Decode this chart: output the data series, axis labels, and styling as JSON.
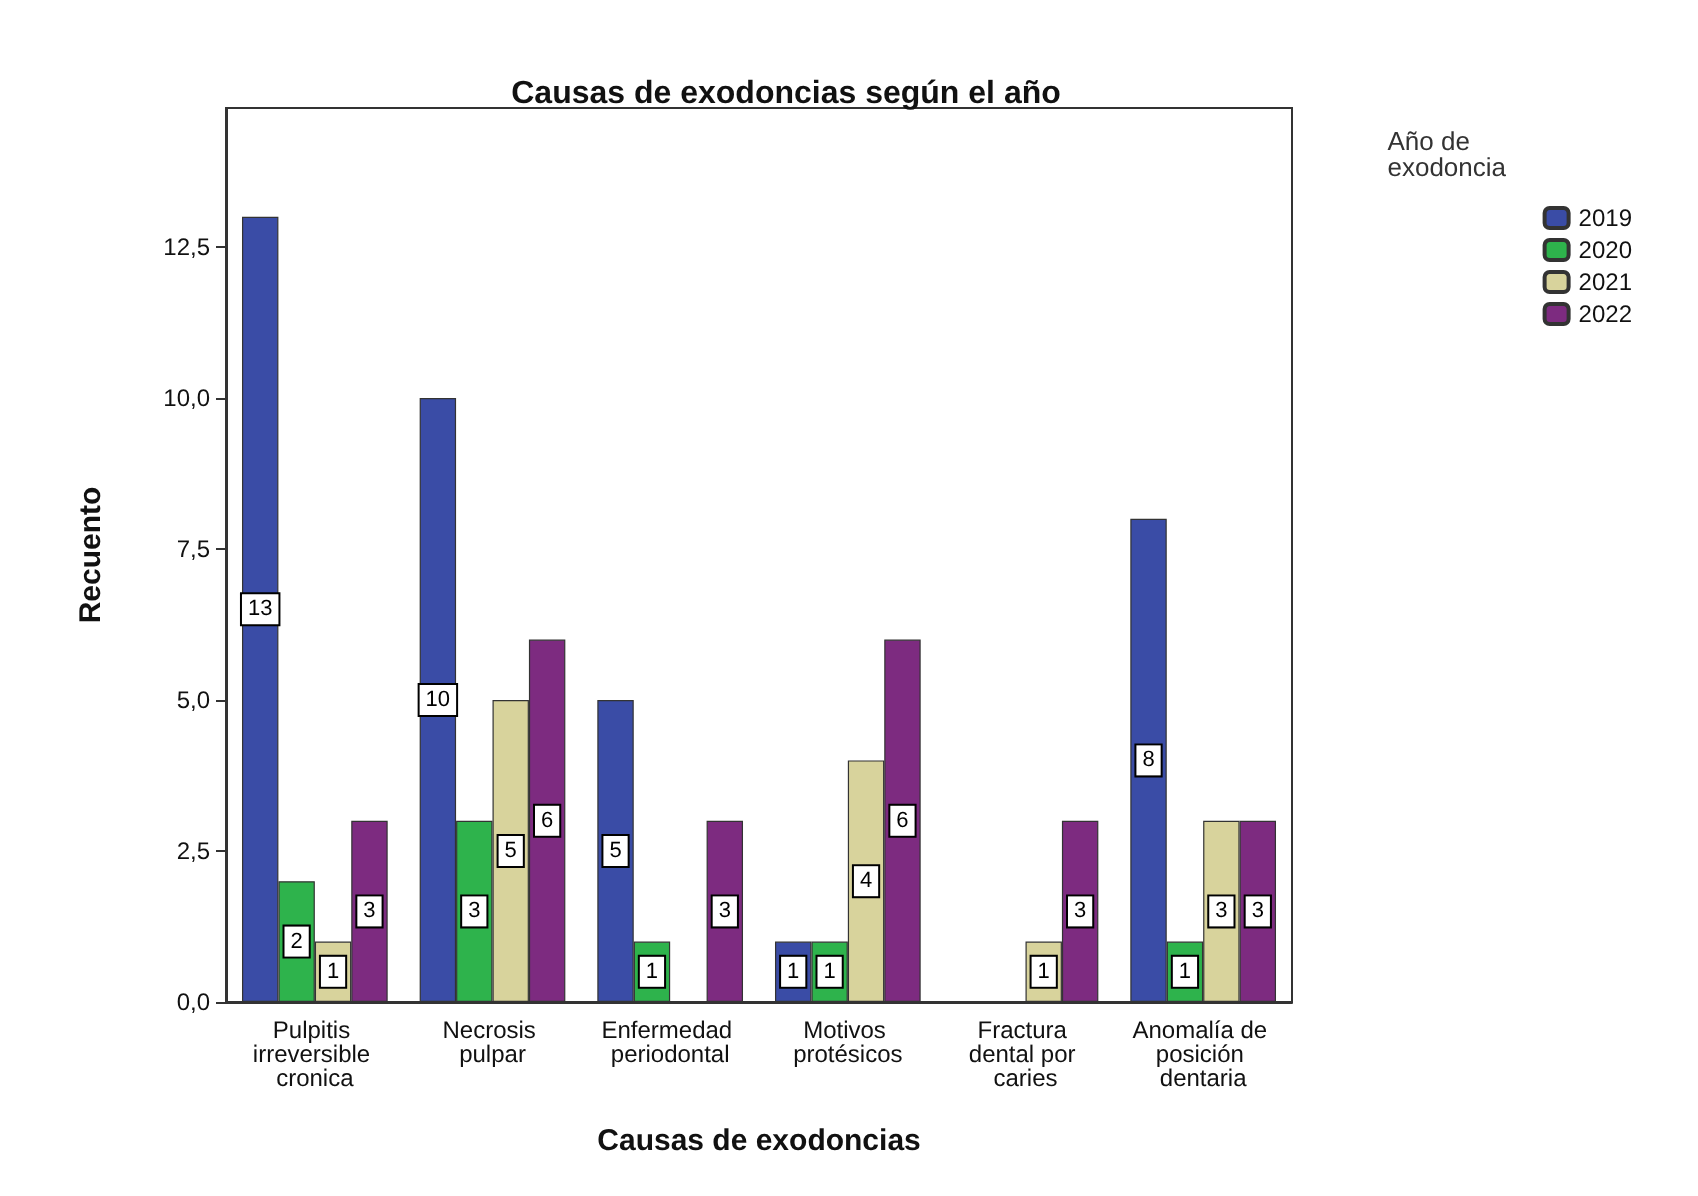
{
  "chart_data": {
    "type": "bar",
    "title": "Causas de exodoncias según el año",
    "xlabel": "Causas de exodoncias",
    "ylabel": "Recuento",
    "legend_title": "Año de exodoncia",
    "categories": [
      "Pulpitis irreversible cronica",
      "Necrosis pulpar",
      "Enfermedad periodontal",
      "Motivos protésicos",
      "Fractura dental por caries",
      "Anomalía de posición dentaria"
    ],
    "series": [
      {
        "name": "2019",
        "color": "#3a4ca6",
        "values": [
          13,
          10,
          5,
          1,
          null,
          8
        ]
      },
      {
        "name": "2020",
        "color": "#2eb34c",
        "values": [
          2,
          3,
          1,
          1,
          null,
          1
        ]
      },
      {
        "name": "2021",
        "color": "#d8d39c",
        "values": [
          1,
          5,
          null,
          4,
          1,
          3
        ]
      },
      {
        "name": "2022",
        "color": "#7d2b80",
        "values": [
          3,
          6,
          3,
          6,
          3,
          3
        ]
      }
    ],
    "ylim": [
      0,
      14.8
    ],
    "yticks": [
      {
        "value": 0,
        "label": "0,0"
      },
      {
        "value": 2.5,
        "label": "2,5"
      },
      {
        "value": 5,
        "label": "5,0"
      },
      {
        "value": 7.5,
        "label": "7,5"
      },
      {
        "value": 10,
        "label": "10,0"
      },
      {
        "value": 12.5,
        "label": "12,5"
      }
    ],
    "grid": false,
    "legend": "top right",
    "data_labels": true
  }
}
